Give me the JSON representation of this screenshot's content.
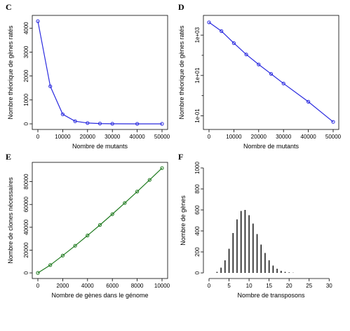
{
  "colors": {
    "blue": "#2a2adf",
    "green": "#1f7a1f",
    "black": "#000000"
  },
  "chart_data": [
    {
      "panel": "C",
      "type": "line",
      "xlabel": "Nombre de mutants",
      "ylabel": "Nombre théorique de gènes ratés",
      "xlim": [
        0,
        50000
      ],
      "ylim": [
        0,
        4300
      ],
      "xticks": [
        0,
        10000,
        20000,
        30000,
        40000,
        50000
      ],
      "yticks": [
        0,
        1000,
        2000,
        3000,
        4000
      ],
      "xtick_labels": [
        "0",
        "10000",
        "20000",
        "30000",
        "40000",
        "50000"
      ],
      "ytick_labels": [
        "0",
        "1000",
        "2000",
        "3000",
        "4000"
      ],
      "color": "#2a2adf",
      "x": [
        0,
        5000,
        10000,
        15000,
        20000,
        25000,
        30000,
        40000,
        50000
      ],
      "y": [
        4290,
        1570,
        400,
        110,
        35,
        12,
        4,
        0.5,
        0.05
      ]
    },
    {
      "panel": "D",
      "type": "line",
      "xlabel": "Nombre de mutants",
      "ylabel": "Nombre théorique de gènes ratés",
      "scale_y": "log",
      "xlim": [
        0,
        50000
      ],
      "ylim": [
        0.04,
        5000
      ],
      "xticks": [
        0,
        10000,
        20000,
        30000,
        40000,
        50000
      ],
      "yticks": [
        0.1,
        10,
        1000
      ],
      "xtick_labels": [
        "0",
        "10000",
        "20000",
        "30000",
        "40000",
        "50000"
      ],
      "ytick_labels": [
        "1e-01",
        "1e+01",
        "1e+03"
      ],
      "color": "#2a2adf",
      "x": [
        0,
        5000,
        10000,
        15000,
        20000,
        25000,
        30000,
        40000,
        50000
      ],
      "y": [
        4290,
        1570,
        400,
        110,
        35,
        12,
        4,
        0.5,
        0.05
      ]
    },
    {
      "panel": "E",
      "type": "line",
      "xlabel": "Nombre de gènes dans le génome",
      "ylabel": "Nombre de clones nécessaires",
      "xlim": [
        0,
        10000
      ],
      "ylim": [
        0,
        92000
      ],
      "xticks": [
        0,
        2000,
        4000,
        6000,
        8000,
        10000
      ],
      "yticks": [
        0,
        20000,
        40000,
        60000,
        80000
      ],
      "xtick_labels": [
        "0",
        "2000",
        "4000",
        "6000",
        "8000",
        "10000"
      ],
      "ytick_labels": [
        "0",
        "20000",
        "40000",
        "60000",
        "80000"
      ],
      "color": "#1f7a1f",
      "x": [
        0,
        1000,
        2000,
        3000,
        4000,
        5000,
        6000,
        7000,
        8000,
        9000,
        10000
      ],
      "y": [
        0,
        6900,
        15200,
        23800,
        32800,
        42000,
        51500,
        61300,
        71300,
        81500,
        91900
      ]
    },
    {
      "panel": "F",
      "type": "bar",
      "xlabel": "Nombre de transposons",
      "ylabel": "Nombre de gènes",
      "xlim": [
        0,
        31
      ],
      "ylim": [
        0,
        1000
      ],
      "xticks": [
        0,
        5,
        10,
        15,
        20,
        25,
        30
      ],
      "yticks": [
        0,
        200,
        400,
        600,
        800,
        1000
      ],
      "xtick_labels": [
        "0",
        "5",
        "10",
        "15",
        "20",
        "25",
        "30"
      ],
      "ytick_labels": [
        "0",
        "200",
        "400",
        "600",
        "800",
        "1000"
      ],
      "color": "#000000",
      "x": [
        2,
        3,
        4,
        5,
        6,
        7,
        8,
        9,
        10,
        11,
        12,
        13,
        14,
        15,
        16,
        17,
        18,
        19,
        20,
        21
      ],
      "y": [
        10,
        50,
        120,
        230,
        380,
        510,
        590,
        600,
        550,
        470,
        370,
        270,
        190,
        120,
        70,
        40,
        20,
        10,
        5,
        2
      ]
    }
  ]
}
